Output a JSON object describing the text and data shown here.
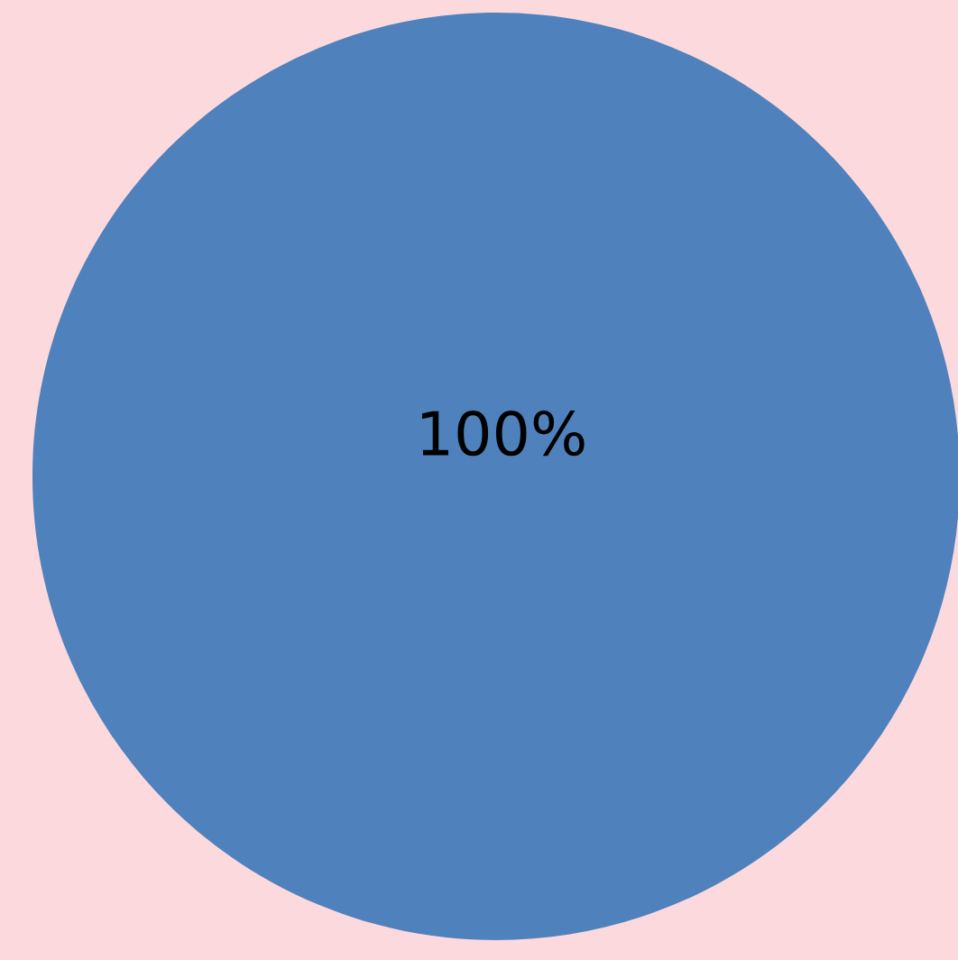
{
  "chart_data": {
    "type": "pie",
    "categories": [
      null
    ],
    "values": [
      100
    ],
    "colors": [
      "#4f81bd"
    ],
    "value_labels": [
      "100%"
    ]
  }
}
